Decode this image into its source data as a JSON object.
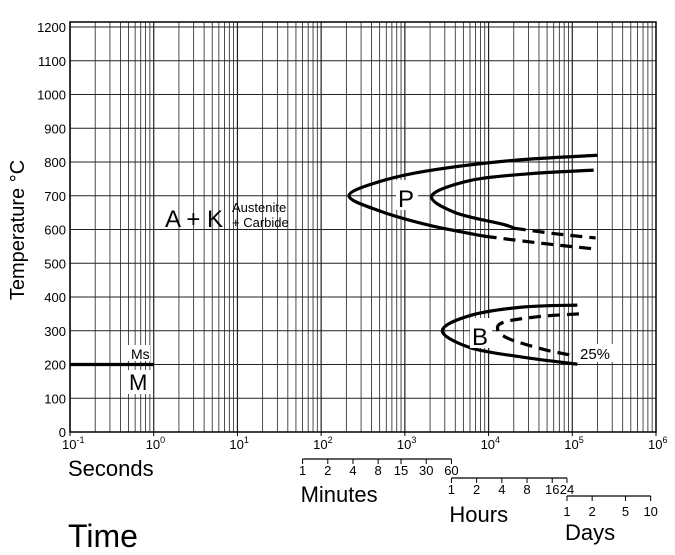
{
  "chart_data": {
    "type": "line",
    "title": "",
    "xlabel": "Seconds",
    "ylabel": "Temperature °C",
    "bottom_label": "Time",
    "x_scale": "log",
    "xlim": [
      0.1,
      1000000
    ],
    "ylim": [
      0,
      1200
    ],
    "grid": true,
    "x_ticks": [
      {
        "value": 0.1,
        "base": "10",
        "exp": "-1"
      },
      {
        "value": 1,
        "base": "10",
        "exp": "0"
      },
      {
        "value": 10,
        "base": "10",
        "exp": "1"
      },
      {
        "value": 100,
        "base": "10",
        "exp": "2"
      },
      {
        "value": 1000,
        "base": "10",
        "exp": "3"
      },
      {
        "value": 10000,
        "base": "10",
        "exp": "4"
      },
      {
        "value": 100000,
        "base": "10",
        "exp": "5"
      },
      {
        "value": 1000000,
        "base": "10",
        "exp": "6"
      }
    ],
    "y_ticks": [
      "0",
      "100",
      "200",
      "300",
      "400",
      "500",
      "600",
      "700",
      "800",
      "900",
      "1000",
      "1100",
      "1200"
    ],
    "secondary_scales": [
      {
        "label": "Minutes",
        "seconds_per_unit": 60,
        "ticks": [
          "1",
          "2",
          "4",
          "8",
          "15",
          "30",
          "60"
        ]
      },
      {
        "label": "Hours",
        "seconds_per_unit": 3600,
        "ticks": [
          "1",
          "2",
          "4",
          "8",
          "16",
          "24"
        ]
      },
      {
        "label": "Days",
        "seconds_per_unit": 86400,
        "ticks": [
          "1",
          "2",
          "5",
          "10"
        ]
      }
    ],
    "series": [
      {
        "id": "pearlite-start",
        "style": "solid",
        "points": [
          [
            200000,
            820
          ],
          [
            20000,
            805
          ],
          [
            2000,
            775
          ],
          [
            500,
            742
          ],
          [
            215,
            700
          ],
          [
            500,
            655
          ],
          [
            2000,
            612
          ],
          [
            9000,
            580
          ]
        ]
      },
      {
        "id": "pearlite-start-ext",
        "style": "dashed",
        "points": [
          [
            9000,
            580
          ],
          [
            40000,
            560
          ],
          [
            190000,
            542
          ]
        ]
      },
      {
        "id": "pearlite-finish",
        "style": "solid",
        "points": [
          [
            180000,
            776
          ],
          [
            30000,
            765
          ],
          [
            6000,
            745
          ],
          [
            2100,
            700
          ],
          [
            4000,
            650
          ],
          [
            15000,
            615
          ],
          [
            20000,
            604
          ]
        ]
      },
      {
        "id": "pearlite-finish-ext",
        "style": "dashed",
        "points": [
          [
            20000,
            604
          ],
          [
            60000,
            588
          ],
          [
            190000,
            575
          ]
        ]
      },
      {
        "id": "bainite-start",
        "style": "solid",
        "points": [
          [
            115000,
            376
          ],
          [
            25000,
            370
          ],
          [
            6000,
            345
          ],
          [
            2800,
            300
          ],
          [
            6000,
            250
          ],
          [
            25000,
            222
          ],
          [
            115000,
            201
          ]
        ]
      },
      {
        "id": "bainite-25pct",
        "style": "dashed",
        "points": [
          [
            120000,
            350
          ],
          [
            40000,
            342
          ],
          [
            15000,
            325
          ],
          [
            13000,
            300
          ],
          [
            18000,
            275
          ],
          [
            45000,
            245
          ],
          [
            110000,
            225
          ]
        ]
      },
      {
        "id": "ms-line",
        "style": "solid",
        "points": [
          [
            0.1,
            200
          ],
          [
            1,
            200
          ]
        ]
      }
    ],
    "annotations": {
      "ak": "A + K",
      "austenite": "Austenite",
      "carbide": "+ Carbide",
      "p": "P",
      "b": "B",
      "pct": "25%",
      "ms": "Ms",
      "m": "M"
    }
  }
}
